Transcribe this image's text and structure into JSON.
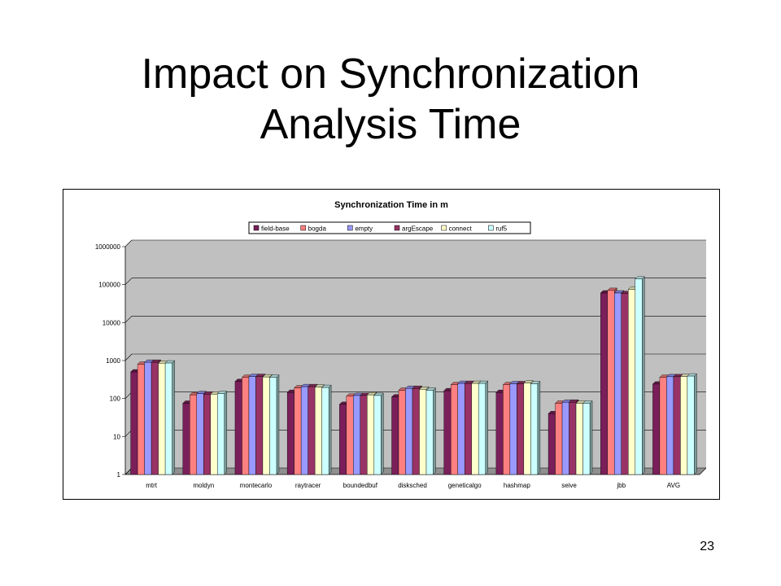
{
  "slide": {
    "title_line1": "Impact on Synchronization",
    "title_line2": "Analysis Time",
    "page_number": "23"
  },
  "chart_data": {
    "type": "bar",
    "title": "Synchronization Time in m",
    "log_scale": true,
    "ylim": [
      1,
      1000000
    ],
    "y_ticks": [
      "1",
      "10",
      "100",
      "1000",
      "10000",
      "100000",
      "1000000"
    ],
    "grid": true,
    "legend_position": "top",
    "categories": [
      "mtrt",
      "moldyn",
      "montecarlo",
      "raytracer",
      "boundedbuf",
      "disksched",
      "geneticalgo",
      "hashmap",
      "seive",
      "jbb",
      "AVG"
    ],
    "series": [
      {
        "name": "field-base",
        "color": "#7a1f5a",
        "values": [
          500,
          75,
          280,
          145,
          70,
          110,
          160,
          145,
          40,
          60000,
          240
        ]
      },
      {
        "name": "bogda",
        "color": "#ff8080",
        "values": [
          800,
          125,
          360,
          190,
          115,
          165,
          230,
          230,
          75,
          70000,
          360
        ]
      },
      {
        "name": "empty",
        "color": "#9999ff",
        "values": [
          900,
          135,
          380,
          205,
          120,
          185,
          250,
          245,
          80,
          60000,
          375
        ]
      },
      {
        "name": "argEscape",
        "color": "#993366",
        "values": [
          900,
          130,
          380,
          205,
          120,
          185,
          250,
          245,
          80,
          58000,
          375
        ]
      },
      {
        "name": "connect",
        "color": "#ffffcc",
        "values": [
          850,
          130,
          370,
          200,
          125,
          175,
          250,
          255,
          75,
          75000,
          380
        ]
      },
      {
        "name": "ruf5",
        "color": "#ccffff",
        "values": [
          860,
          135,
          360,
          195,
          120,
          165,
          250,
          245,
          75,
          140000,
          390
        ]
      }
    ]
  }
}
